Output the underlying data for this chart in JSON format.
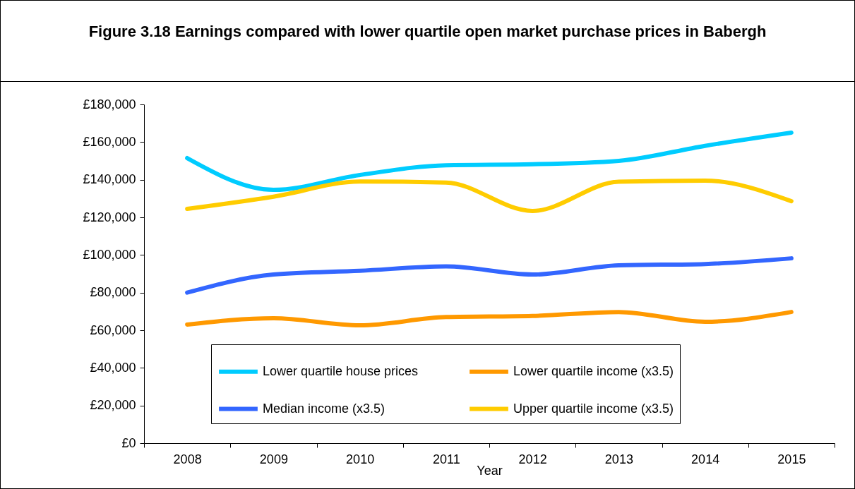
{
  "chart_data": {
    "type": "line",
    "title": "Figure 3.18 Earnings compared with lower quartile open market purchase prices in Babergh",
    "xlabel": "Year",
    "categories": [
      "2008",
      "2009",
      "2010",
      "2011",
      "2012",
      "2013",
      "2014",
      "2015"
    ],
    "series": [
      {
        "name": "Lower quartile house prices",
        "color": "#00ccff",
        "values": [
          151500,
          134600,
          142500,
          147700,
          148200,
          150000,
          158000,
          165000
        ]
      },
      {
        "name": "Lower quartile income (x3.5)",
        "color": "#ff9900",
        "values": [
          63000,
          66400,
          62600,
          67000,
          67600,
          69700,
          64500,
          69700
        ]
      },
      {
        "name": "Median income (x3.5)",
        "color": "#3366ff",
        "values": [
          80000,
          89600,
          91600,
          93900,
          89600,
          94500,
          95200,
          98200
        ]
      },
      {
        "name": "Upper quartile income (x3.5)",
        "color": "#ffcc00",
        "values": [
          124500,
          131000,
          139000,
          138500,
          123400,
          138900,
          139500,
          128600
        ]
      }
    ],
    "ylim": [
      0,
      180000
    ],
    "yticks": [
      {
        "value": 0,
        "label": "£0"
      },
      {
        "value": 20000,
        "label": "£20,000"
      },
      {
        "value": 40000,
        "label": "£40,000"
      },
      {
        "value": 60000,
        "label": "£60,000"
      },
      {
        "value": 80000,
        "label": "£80,000"
      },
      {
        "value": 100000,
        "label": "£100,000"
      },
      {
        "value": 120000,
        "label": "£120,000"
      },
      {
        "value": 140000,
        "label": "£140,000"
      },
      {
        "value": 160000,
        "label": "£160,000"
      },
      {
        "value": 180000,
        "label": "£180,000"
      }
    ],
    "grid": false,
    "legend": "bottom",
    "marker": "none",
    "line_style": "solid"
  }
}
